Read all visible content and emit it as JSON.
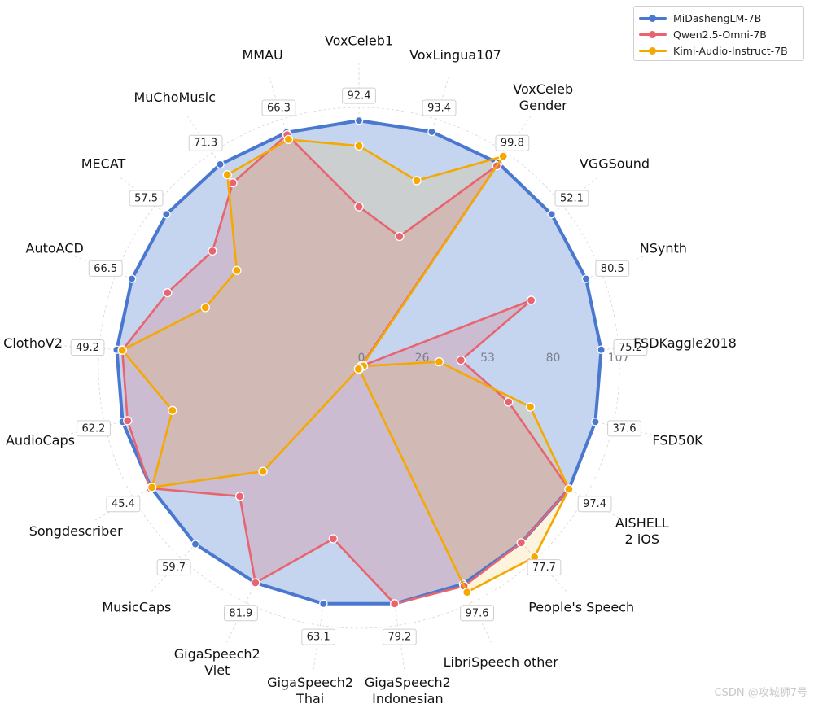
{
  "chart_data": {
    "type": "radar",
    "title": "",
    "axes": [
      "VoxCeleb1",
      "VoxLingua107",
      "VoxCeleb\nGender",
      "VGGSound",
      "NSynth",
      "FSDKaggle2018",
      "FSD50K",
      "AISHELL\n2 iOS",
      "People's Speech",
      "LibriSpeech other",
      "GigaSpeech2\nIndonesian",
      "GigaSpeech2\nThai",
      "GigaSpeech2\nViet",
      "MusicCaps",
      "Songdescriber",
      "AudioCaps",
      "ClothoV2",
      "AutoACD",
      "MECAT",
      "MuChoMusic",
      "MMAU"
    ],
    "axis_value_labels": [
      "92.4",
      "93.4",
      "99.8",
      "52.1",
      "80.5",
      "75.2",
      "37.6",
      "97.4",
      "77.7",
      "97.6",
      "79.2",
      "63.1",
      "81.9",
      "59.7",
      "45.4",
      "62.2",
      "49.2",
      "66.5",
      "57.5",
      "71.3",
      "66.3"
    ],
    "radial_ticks": [
      "0",
      "26",
      "53",
      "80",
      "107"
    ],
    "rlim": [
      0,
      107
    ],
    "grid": true,
    "legend_position": "upper right",
    "series": [
      {
        "name": "MiDashengLM-7B",
        "color": "#4a78cf",
        "fill": "#c5d5ef",
        "values": [
          101.6,
          101.5,
          101.8,
          101.2,
          100.2,
          99.8,
          99.6,
          99.6,
          98.0,
          98.6,
          98.0,
          98.0,
          98.0,
          98.8,
          98.6,
          99.6,
          99.8,
          100.2,
          101.2,
          101.2,
          101.2
        ]
      },
      {
        "name": "Qwen2.5-Omni-7B",
        "color": "#e8646e",
        "fill": "#d8b5b5",
        "values": [
          66.2,
          56.5,
          100.5,
          1.0,
          76.0,
          42.0,
          63.0,
          99.6,
          98.0,
          99.5,
          98.0,
          71.0,
          98.0,
          72.0,
          99.0,
          97.5,
          97.5,
          84.5,
          77.0,
          92.0,
          100.2
        ]
      },
      {
        "name": "Kimi-Audio-Instruct-7B",
        "color": "#f5a800",
        "fill": "#f3ddb0",
        "values": [
          91.2,
          80.5,
          105.2,
          2.0,
          2.0,
          33.0,
          72.2,
          99.6,
          106.0,
          102.3,
          0.5,
          0.5,
          0.5,
          58.0,
          98.2,
          78.6,
          97.5,
          67.8,
          64.2,
          96.0,
          98.2
        ]
      }
    ]
  },
  "legend": {
    "items": [
      {
        "label": "MiDashengLM-7B",
        "color": "#4a78cf"
      },
      {
        "label": "Qwen2.5-Omni-7B",
        "color": "#e8646e"
      },
      {
        "label": "Kimi-Audio-Instruct-7B",
        "color": "#f5a800"
      }
    ]
  },
  "watermark": "CSDN @攻城狮7号"
}
